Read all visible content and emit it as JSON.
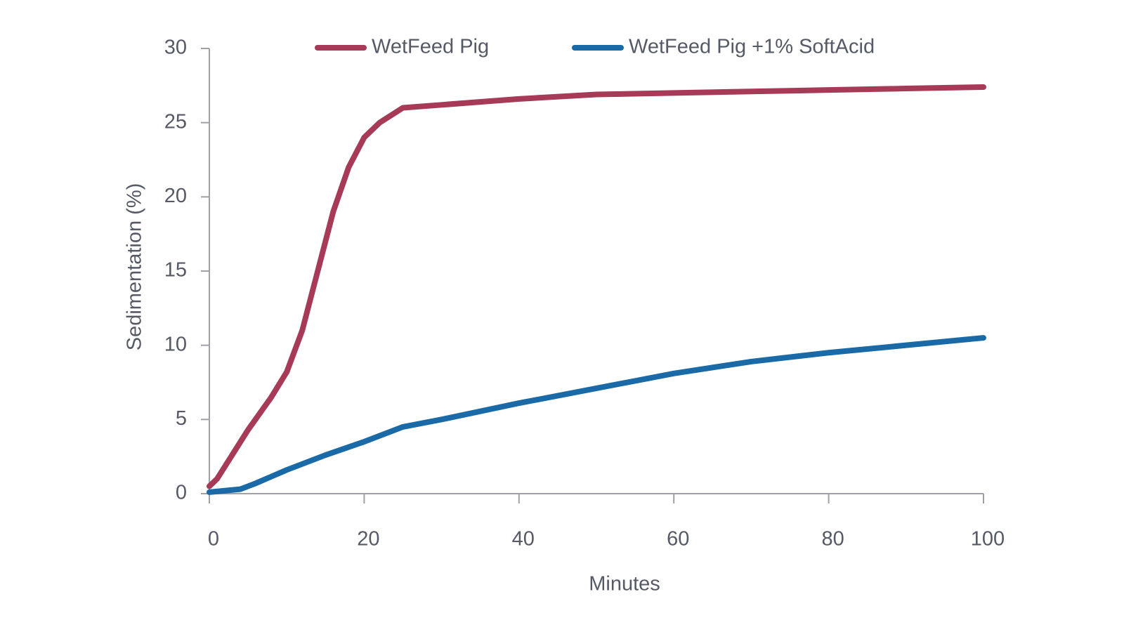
{
  "chart_data": {
    "type": "line",
    "x_label": "Minutes",
    "y_label": "Sedimentation (%)",
    "xlim": [
      0,
      100
    ],
    "xticks": [
      0,
      20,
      40,
      60,
      80,
      100
    ],
    "ylim": [
      0,
      30
    ],
    "yticks": [
      0,
      5,
      10,
      15,
      20,
      25,
      30
    ],
    "legend": "top",
    "series": [
      {
        "name": "WetFeed Pig",
        "color": "#a63a57",
        "x": [
          0,
          1,
          5,
          8,
          10,
          12,
          14,
          16,
          18,
          20,
          22,
          25,
          30,
          40,
          50,
          60,
          70,
          80,
          90,
          100
        ],
        "values": [
          0.5,
          1,
          4.3,
          6.5,
          8.2,
          11,
          15,
          19,
          22,
          24,
          25,
          26,
          26.2,
          26.6,
          26.9,
          27,
          27.1,
          27.2,
          27.3,
          27.4
        ]
      },
      {
        "name": "WetFeed Pig +1% SoftAcid",
        "color": "#1a6aa8",
        "x": [
          0,
          4,
          5,
          6,
          10,
          15,
          20,
          25,
          30,
          40,
          50,
          60,
          70,
          80,
          90,
          100
        ],
        "values": [
          0.1,
          0.3,
          0.5,
          0.7,
          1.6,
          2.6,
          3.5,
          4.5,
          5.0,
          6.1,
          7.1,
          8.1,
          8.9,
          9.5,
          10,
          10.5
        ]
      }
    ]
  }
}
